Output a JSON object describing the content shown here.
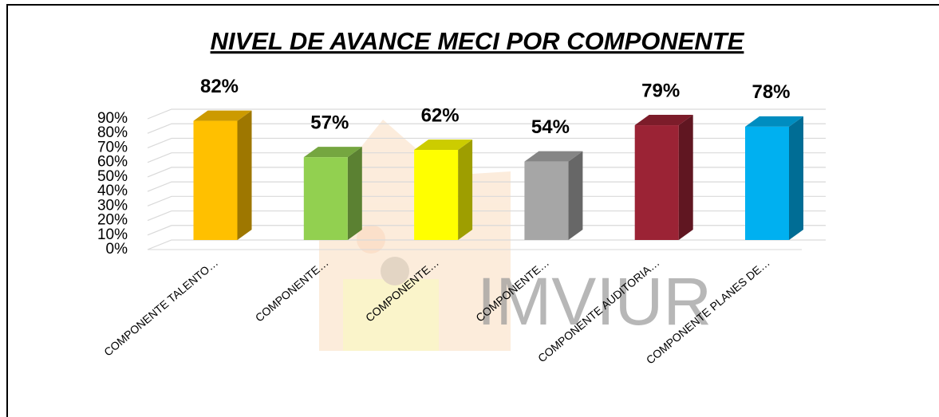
{
  "chart_data": {
    "type": "bar3d",
    "title": "NIVEL DE AVANCE MECI POR COMPONENTE",
    "watermark": "IMVIUR",
    "categories": [
      "COMPONENTE TALENTO…",
      "COMPONENTE…",
      "COMPONENTE…",
      "COMPONENTE…",
      "COMPONENTE AUDITORIA…",
      "COMPONENTE PLANES DE…"
    ],
    "values": [
      82,
      57,
      62,
      54,
      79,
      78
    ],
    "value_labels": [
      "82%",
      "57%",
      "62%",
      "54%",
      "79%",
      "78%"
    ],
    "colors": [
      "#FFC000",
      "#92D050",
      "#FFFF00",
      "#A6A6A6",
      "#9B2335",
      "#00B0F0"
    ],
    "ylim": [
      0,
      90
    ],
    "yticks": [
      {
        "value": 0,
        "label": "0%"
      },
      {
        "value": 10,
        "label": "10%"
      },
      {
        "value": 20,
        "label": "20%"
      },
      {
        "value": 30,
        "label": "30%"
      },
      {
        "value": 40,
        "label": "40%"
      },
      {
        "value": 50,
        "label": "50%"
      },
      {
        "value": 60,
        "label": "60%"
      },
      {
        "value": 70,
        "label": "70%"
      },
      {
        "value": 80,
        "label": "80%"
      },
      {
        "value": 90,
        "label": "90%"
      }
    ],
    "grid": true
  }
}
